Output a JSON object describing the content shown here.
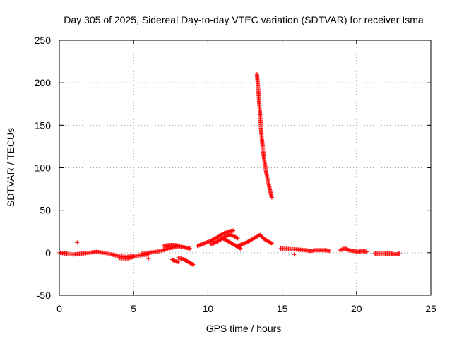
{
  "chart_data": {
    "type": "scatter",
    "title": "Day 305 of 2025, Sidereal Day-to-day VTEC variation (SDTVAR) for receiver Isma",
    "xlabel": "GPS time / hours",
    "ylabel": "SDTVAR / TECUs",
    "xlim": [
      0,
      25
    ],
    "ylim": [
      -50,
      250
    ],
    "xticks": [
      0,
      5,
      10,
      15,
      20,
      25
    ],
    "yticks": [
      -50,
      0,
      50,
      100,
      150,
      200,
      250
    ],
    "grid": true,
    "marker": "+",
    "color": "#ff0000",
    "segments": [
      {
        "x": [
          0.0,
          0.5,
          1.0,
          1.5,
          2.0,
          2.5,
          3.0,
          3.5,
          4.0,
          4.5,
          5.0,
          5.5,
          6.0
        ],
        "y": [
          0,
          -1,
          -2,
          -1,
          0,
          1,
          0,
          -2,
          -4,
          -5,
          -4,
          -3,
          -2
        ]
      },
      {
        "x": [
          4.0,
          4.5,
          5.0
        ],
        "y": [
          -6,
          -7,
          -5
        ]
      },
      {
        "x": [
          5.5,
          6.0,
          6.5,
          7.0,
          7.3,
          7.6,
          7.9,
          8.2,
          8.5,
          8.8
        ],
        "y": [
          -1,
          0,
          1,
          3,
          5,
          6,
          7,
          7,
          6,
          5
        ]
      },
      {
        "x": [
          7.0,
          7.4,
          7.8,
          8.1
        ],
        "y": [
          8,
          9,
          9,
          8
        ]
      },
      {
        "x": [
          8.0,
          8.2,
          8.4,
          8.6,
          8.8,
          9.0
        ],
        "y": [
          -6,
          -7,
          -8,
          -10,
          -12,
          -14
        ]
      },
      {
        "x": [
          7.6,
          7.8,
          8.0
        ],
        "y": [
          -8,
          -10,
          -11
        ]
      },
      {
        "x": [
          9.3,
          9.6,
          9.9,
          10.2,
          10.5,
          10.8,
          11.1,
          11.4,
          11.7
        ],
        "y": [
          8,
          10,
          12,
          14,
          17,
          20,
          23,
          25,
          26
        ]
      },
      {
        "x": [
          10.2,
          10.5,
          10.8,
          11.1,
          11.4,
          11.7,
          12.0
        ],
        "y": [
          10,
          12,
          15,
          18,
          21,
          20,
          17
        ]
      },
      {
        "x": [
          11.0,
          11.4,
          11.8,
          12.2
        ],
        "y": [
          17,
          13,
          9,
          5
        ]
      },
      {
        "x": [
          12.0,
          12.3,
          12.6,
          12.9,
          13.2,
          13.5,
          13.8,
          14.1,
          14.3
        ],
        "y": [
          8,
          10,
          12,
          15,
          18,
          21,
          16,
          13,
          11
        ]
      },
      {
        "x": [
          13.3,
          13.4,
          13.5,
          13.6,
          13.7,
          13.8,
          13.9,
          14.0,
          14.1,
          14.2,
          14.3
        ],
        "y": [
          210,
          190,
          165,
          140,
          122,
          108,
          97,
          88,
          80,
          72,
          65
        ]
      },
      {
        "x": [
          14.9,
          15.8,
          16.6,
          16.9,
          17.2,
          17.9,
          18.2
        ],
        "y": [
          5,
          4,
          3,
          2,
          3,
          3,
          2
        ]
      },
      {
        "x": [
          18.9,
          19.2,
          19.5,
          19.8,
          20.1,
          20.4,
          20.7
        ],
        "y": [
          3,
          5,
          3,
          2,
          1,
          2,
          1
        ]
      },
      {
        "x": [
          21.2,
          22.3,
          22.6,
          22.9
        ],
        "y": [
          -1,
          -1,
          -2,
          -1
        ]
      }
    ],
    "isolated_points": [
      {
        "x": 1.2,
        "y": 12
      },
      {
        "x": 15.8,
        "y": -2
      },
      {
        "x": 6.0,
        "y": -7
      }
    ]
  }
}
